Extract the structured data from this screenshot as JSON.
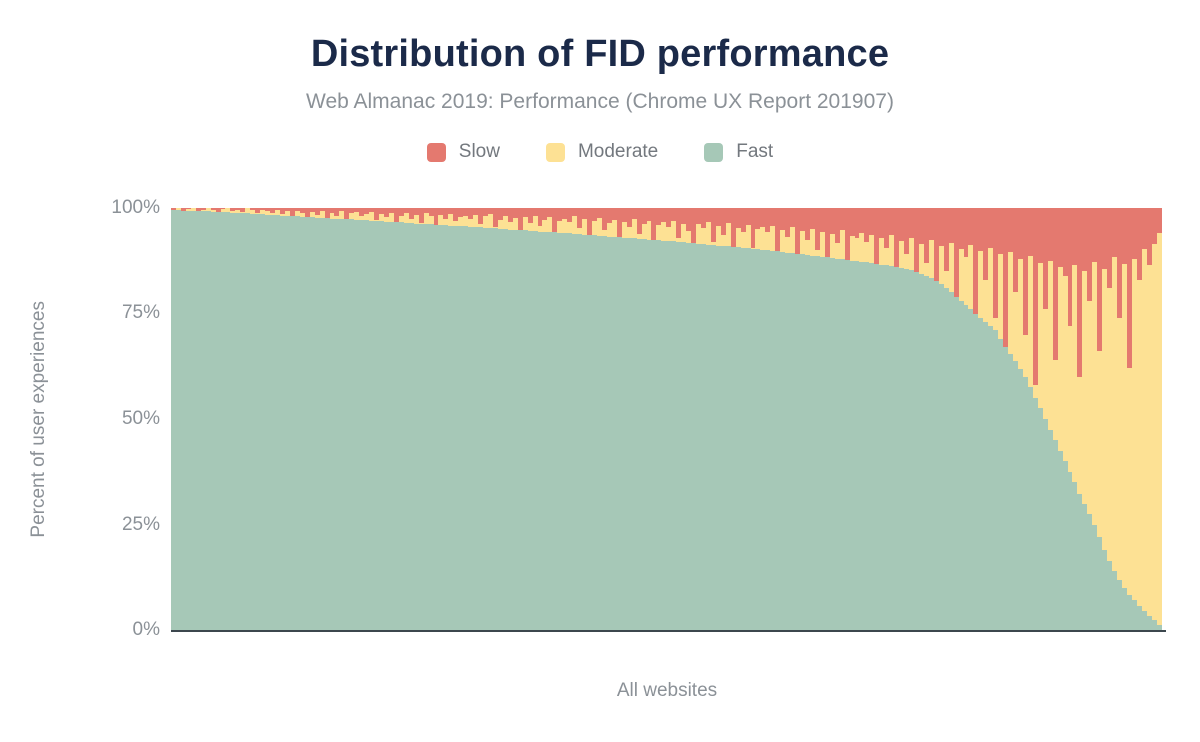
{
  "header": {
    "title": "Distribution of FID performance",
    "subtitle": "Web Almanac 2019: Performance (Chrome UX Report 201907)"
  },
  "colors": {
    "slow": "#e4796f",
    "moderate": "#fde194",
    "fast": "#a6c8b7",
    "title_text": "#1b2a49",
    "muted_text": "#8b9197",
    "axis_line": "#3c474e"
  },
  "chart_data": {
    "type": "bar",
    "stacked": true,
    "normalized_total": 100,
    "title": "Distribution of FID performance",
    "subtitle": "Web Almanac 2019: Performance (Chrome UX Report 201907)",
    "xlabel": "All websites",
    "ylabel": "Percent of user experiences",
    "ylim": [
      0,
      100
    ],
    "yticks": [
      "100%",
      "75%",
      "50%",
      "25%",
      "0%"
    ],
    "grid": false,
    "legend_position": "top",
    "x_description": "Individual websites sorted by descending share of fast FID user experiences; no x tick labels shown",
    "bar_count": 200,
    "series": [
      {
        "name": "Slow",
        "color": "#e4796f",
        "position": "top of stack",
        "values": [
          0.4,
          0,
          0.6,
          0.3,
          0,
          0.8,
          0.4,
          0,
          0.5,
          1,
          0.3,
          0,
          0.7,
          0.4,
          0.9,
          0,
          0.5,
          1.1,
          0.4,
          0.8,
          1.2,
          0.5,
          1.5,
          0.8,
          2,
          0.6,
          1.3,
          2.2,
          0.9,
          1.6,
          0.7,
          2.4,
          1.1,
          1.8,
          0.8,
          2.6,
          1.2,
          0.9,
          2,
          1.4,
          1,
          2.8,
          1.5,
          2.2,
          1.1,
          3.2,
          1.8,
          1.2,
          2.5,
          1.6,
          3.5,
          1.3,
          2,
          4,
          1.7,
          2.6,
          1.4,
          3,
          2.2,
          1.8,
          2.5,
          1.6,
          3.8,
          2,
          1.4,
          4.5,
          2.8,
          1.9,
          3.2,
          2.4,
          5.5,
          2.1,
          3.6,
          1.8,
          4.2,
          2.9,
          2.2,
          6,
          3.1,
          2.5,
          3.4,
          2,
          4.8,
          2.7,
          7.5,
          3,
          2.3,
          5.2,
          3.6,
          2.8,
          8.5,
          3.2,
          4.4,
          2.6,
          6.2,
          3.8,
          3,
          9,
          4.1,
          3.3,
          4.6,
          3.1,
          7,
          3.7,
          5.4,
          10.5,
          3.9,
          4.8,
          3.4,
          8,
          4.3,
          6.5,
          3.6,
          12,
          4.7,
          5.8,
          4,
          9.5,
          5,
          4.4,
          5.6,
          4.2,
          11,
          5.1,
          6.8,
          4.6,
          14,
          5.4,
          7.6,
          4.9,
          10,
          5.8,
          16,
          6.2,
          8.4,
          5.2,
          12.5,
          6.6,
          7.2,
          5.9,
          8,
          6.3,
          18,
          7,
          9.5,
          6.5,
          22,
          7.8,
          11,
          7.2,
          25,
          8.5,
          13,
          7.6,
          28,
          9,
          15,
          8.2,
          32,
          9.6,
          11.5,
          8.8,
          35,
          10.2,
          17,
          9.4,
          26,
          11,
          38,
          10.5,
          20,
          12,
          30,
          11.4,
          42,
          13,
          24,
          12.5,
          36,
          14,
          16,
          28,
          13.5,
          40,
          15,
          22,
          12.8,
          34,
          14.5,
          19,
          11.6,
          26,
          13.2,
          38,
          12,
          17,
          9.8,
          13.5,
          8.6,
          6
        ]
      },
      {
        "name": "Moderate",
        "color": "#fde194",
        "position": "middle of stack",
        "values_rule": "remainder: 100 - Fast - Slow for each bar"
      },
      {
        "name": "Fast",
        "color": "#a6c8b7",
        "position": "bottom of stack",
        "values": [
          99.5,
          99.5,
          99.4,
          99.4,
          99.3,
          99.3,
          99.2,
          99.2,
          99.1,
          99.1,
          99,
          99,
          98.9,
          98.9,
          98.8,
          98.8,
          98.7,
          98.6,
          98.5,
          98.4,
          98.3,
          98.3,
          98.2,
          98.1,
          98.1,
          98,
          97.9,
          97.9,
          97.8,
          97.7,
          97.7,
          97.6,
          97.5,
          97.5,
          97.4,
          97.3,
          97.3,
          97.2,
          97.1,
          97.1,
          97,
          96.9,
          96.9,
          96.8,
          96.7,
          96.6,
          96.6,
          96.5,
          96.4,
          96.3,
          96.3,
          96.2,
          96.1,
          96,
          96,
          95.9,
          95.8,
          95.8,
          95.7,
          95.7,
          95.6,
          95.5,
          95.4,
          95.3,
          95.2,
          95.2,
          95.1,
          95,
          94.9,
          94.8,
          94.8,
          94.7,
          94.6,
          94.5,
          94.4,
          94.4,
          94.3,
          94.2,
          94.1,
          94.1,
          94,
          93.9,
          93.8,
          93.7,
          93.6,
          93.5,
          93.4,
          93.3,
          93.2,
          93.1,
          93.1,
          93,
          92.9,
          92.8,
          92.7,
          92.6,
          92.5,
          92.4,
          92.4,
          92.3,
          92.2,
          92.1,
          92,
          91.9,
          91.8,
          91.7,
          91.5,
          91.4,
          91.3,
          91.2,
          91.1,
          91,
          90.9,
          90.8,
          90.7,
          90.6,
          90.5,
          90.3,
          90.2,
          90.1,
          90,
          89.9,
          89.7,
          89.6,
          89.4,
          89.3,
          89.2,
          89,
          88.9,
          88.7,
          88.6,
          88.4,
          88.3,
          88.1,
          88,
          87.8,
          87.7,
          87.5,
          87.4,
          87.3,
          87.2,
          87,
          86.8,
          86.6,
          86.4,
          86.2,
          86,
          85.8,
          85.6,
          85.4,
          84.8,
          84.3,
          83.8,
          83.3,
          82.7,
          82.1,
          81,
          80,
          79,
          78,
          77,
          76,
          75,
          74,
          73,
          72,
          71,
          69,
          67,
          65.5,
          63.7,
          61.9,
          60,
          57.5,
          55,
          52.5,
          50,
          47.5,
          45,
          42.5,
          40,
          37.5,
          35,
          32.2,
          29.8,
          27.4,
          25,
          22,
          19,
          16.3,
          13.9,
          11.8,
          10,
          8.4,
          7,
          5.7,
          4.5,
          3.4,
          2.3,
          1.2
        ]
      }
    ]
  }
}
